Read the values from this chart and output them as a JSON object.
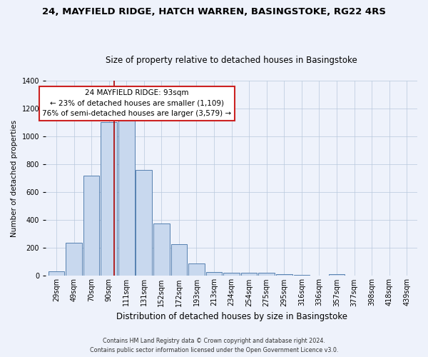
{
  "title": "24, MAYFIELD RIDGE, HATCH WARREN, BASINGSTOKE, RG22 4RS",
  "subtitle": "Size of property relative to detached houses in Basingstoke",
  "xlabel": "Distribution of detached houses by size in Basingstoke",
  "ylabel": "Number of detached properties",
  "bar_labels": [
    "29sqm",
    "49sqm",
    "70sqm",
    "90sqm",
    "111sqm",
    "131sqm",
    "152sqm",
    "172sqm",
    "193sqm",
    "213sqm",
    "234sqm",
    "254sqm",
    "275sqm",
    "295sqm",
    "316sqm",
    "336sqm",
    "357sqm",
    "377sqm",
    "398sqm",
    "418sqm",
    "439sqm"
  ],
  "bar_heights": [
    35,
    240,
    720,
    1105,
    1120,
    760,
    375,
    225,
    90,
    30,
    20,
    20,
    20,
    10,
    5,
    0,
    10,
    0,
    0,
    0,
    0
  ],
  "bar_color": "#c8d8ee",
  "bar_edge_color": "#5580b0",
  "vline_color": "#aa0000",
  "vline_position": 3.3,
  "annotation_box_color": "#ffffff",
  "annotation_box_edge": "#cc2222",
  "property_label": "24 MAYFIELD RIDGE: 93sqm",
  "annotation_line1": "← 23% of detached houses are smaller (1,109)",
  "annotation_line2": "76% of semi-detached houses are larger (3,579) →",
  "ylim": [
    0,
    1400
  ],
  "yticks": [
    0,
    200,
    400,
    600,
    800,
    1000,
    1200,
    1400
  ],
  "background_color": "#eef2fb",
  "footer_line1": "Contains HM Land Registry data © Crown copyright and database right 2024.",
  "footer_line2": "Contains public sector information licensed under the Open Government Licence v3.0.",
  "title_fontsize": 9.5,
  "subtitle_fontsize": 8.5,
  "ylabel_fontsize": 7.5,
  "xlabel_fontsize": 8.5,
  "tick_fontsize": 7.0,
  "annot_fontsize": 7.5,
  "footer_fontsize": 5.8
}
